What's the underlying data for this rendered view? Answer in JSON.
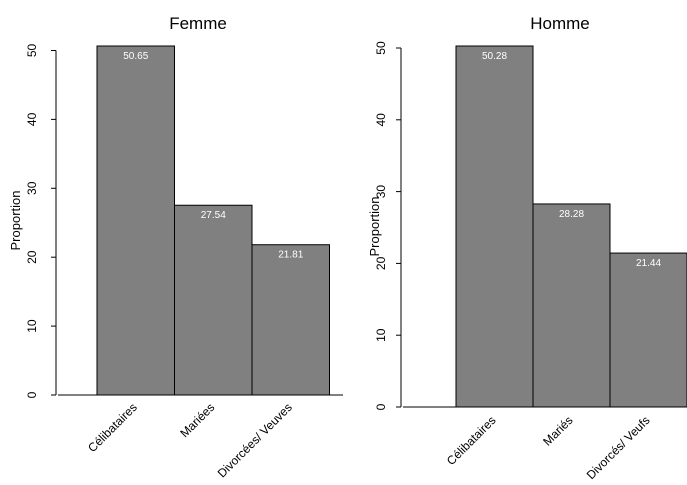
{
  "chart_data": [
    {
      "type": "bar",
      "title": "Femme",
      "ylabel": "Proportion",
      "xlabel": "",
      "categories": [
        "Célibataires",
        "Mariées",
        "Divorcées/ Veuves"
      ],
      "values": [
        50.65,
        27.54,
        21.81
      ],
      "data_labels": [
        "50.65",
        "27.54",
        "21.81"
      ],
      "ylim": [
        0,
        50.65
      ],
      "yticks": [
        0,
        10,
        20,
        30,
        40,
        50
      ],
      "ytick_labels": [
        "0",
        "10",
        "20",
        "30",
        "40",
        "50"
      ],
      "bar_color": "#808080",
      "grid": false,
      "legend": "none"
    },
    {
      "type": "bar",
      "title": "Homme",
      "ylabel": "Proportion",
      "xlabel": "",
      "categories": [
        "Célibataires",
        "Mariés",
        "Divorcés/ Veufs"
      ],
      "values": [
        50.28,
        28.28,
        21.44
      ],
      "data_labels": [
        "50.28",
        "28.28",
        "21.44"
      ],
      "ylim": [
        0,
        50.28
      ],
      "yticks": [
        0,
        10,
        20,
        30,
        40,
        50
      ],
      "ytick_labels": [
        "0",
        "10",
        "20",
        "30",
        "40",
        "50"
      ],
      "bar_color": "#808080",
      "grid": false,
      "legend": "none"
    }
  ]
}
